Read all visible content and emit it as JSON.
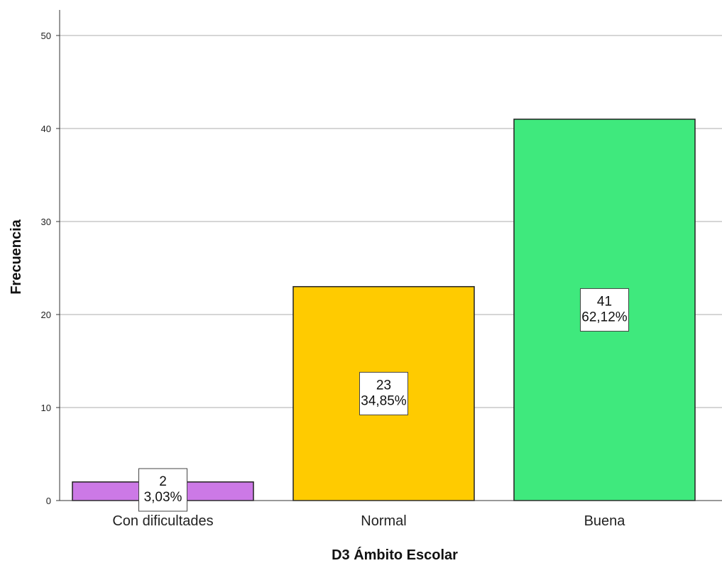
{
  "chart_data": {
    "type": "bar",
    "title": "",
    "xlabel": "D3 Ámbito Escolar",
    "ylabel": "Frecuencia",
    "ylim": [
      0,
      50
    ],
    "yticks": [
      0,
      10,
      20,
      30,
      40,
      50
    ],
    "grid": true,
    "categories": [
      "Con dificultades",
      "Normal",
      "Buena"
    ],
    "values": [
      2,
      23,
      41
    ],
    "percent_labels": [
      "3,03%",
      "34,85%",
      "62,12%"
    ],
    "colors": [
      "#CC79E6",
      "#FFCB00",
      "#3FE97D"
    ]
  }
}
